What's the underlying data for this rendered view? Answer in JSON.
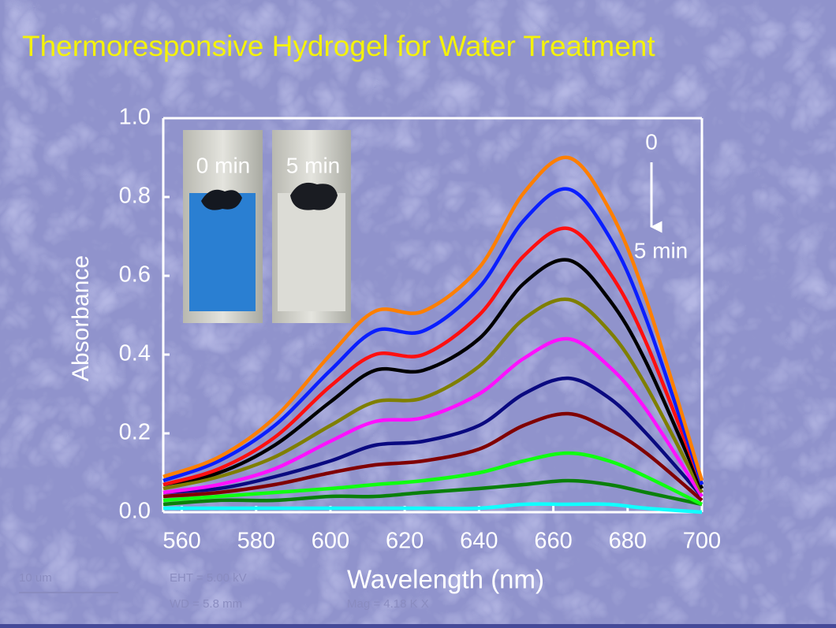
{
  "chart_data": {
    "type": "line",
    "title": "Thermoresponsive Hydrogel for Water Treatment",
    "x_label": "Wavelength (nm)",
    "y_label": "Absorbance",
    "x": [
      555,
      570,
      585,
      600,
      612,
      625,
      640,
      652,
      664,
      675,
      685,
      700
    ],
    "series": [
      {
        "color": "#ff7f00",
        "values": [
          0.09,
          0.14,
          0.24,
          0.4,
          0.51,
          0.51,
          0.62,
          0.81,
          0.9,
          0.77,
          0.54,
          0.08
        ]
      },
      {
        "color": "#0a1fff",
        "values": [
          0.08,
          0.13,
          0.22,
          0.36,
          0.46,
          0.46,
          0.57,
          0.74,
          0.82,
          0.7,
          0.49,
          0.07
        ]
      },
      {
        "color": "#ff1010",
        "values": [
          0.07,
          0.11,
          0.19,
          0.32,
          0.4,
          0.4,
          0.5,
          0.65,
          0.72,
          0.61,
          0.43,
          0.07
        ]
      },
      {
        "color": "#000000",
        "values": [
          0.07,
          0.1,
          0.17,
          0.28,
          0.36,
          0.36,
          0.44,
          0.58,
          0.64,
          0.54,
          0.38,
          0.06
        ]
      },
      {
        "color": "#7f7f00",
        "values": [
          0.06,
          0.09,
          0.14,
          0.22,
          0.28,
          0.29,
          0.37,
          0.49,
          0.54,
          0.46,
          0.32,
          0.05
        ]
      },
      {
        "color": "#ff10ff",
        "values": [
          0.05,
          0.07,
          0.11,
          0.18,
          0.23,
          0.24,
          0.3,
          0.39,
          0.44,
          0.37,
          0.26,
          0.04
        ]
      },
      {
        "color": "#0a0a80",
        "values": [
          0.05,
          0.06,
          0.09,
          0.13,
          0.17,
          0.18,
          0.22,
          0.3,
          0.34,
          0.29,
          0.2,
          0.04
        ]
      },
      {
        "color": "#800000",
        "values": [
          0.04,
          0.05,
          0.07,
          0.1,
          0.12,
          0.13,
          0.16,
          0.22,
          0.25,
          0.21,
          0.15,
          0.03
        ]
      },
      {
        "color": "#10ff10",
        "values": [
          0.03,
          0.04,
          0.05,
          0.06,
          0.07,
          0.08,
          0.1,
          0.13,
          0.15,
          0.13,
          0.09,
          0.02
        ]
      },
      {
        "color": "#0a800a",
        "values": [
          0.02,
          0.03,
          0.03,
          0.04,
          0.04,
          0.05,
          0.06,
          0.07,
          0.08,
          0.07,
          0.05,
          0.02
        ]
      },
      {
        "color": "#10ffff",
        "values": [
          0.01,
          0.01,
          0.01,
          0.01,
          0.01,
          0.01,
          0.01,
          0.02,
          0.02,
          0.02,
          0.01,
          0.0
        ]
      }
    ],
    "xlim": [
      555,
      700
    ],
    "ylim": [
      0,
      1
    ],
    "xticks": [
      560,
      580,
      600,
      620,
      640,
      660,
      680,
      700
    ],
    "yticks": [
      {
        "value": 0,
        "label": "0.0"
      },
      {
        "value": 0.2,
        "label": "0.2"
      },
      {
        "value": 0.4,
        "label": "0.4"
      },
      {
        "value": 0.6,
        "label": "0.6"
      },
      {
        "value": 0.8,
        "label": "0.8"
      },
      {
        "value": 1,
        "label": "1.0"
      }
    ],
    "annotations": [
      "0 min",
      "5 min",
      "0",
      "5 min",
      "10 um",
      "EHT = 5.00 kV",
      "WD = 5.8 mm",
      "Mag = 4.18 K X"
    ]
  }
}
